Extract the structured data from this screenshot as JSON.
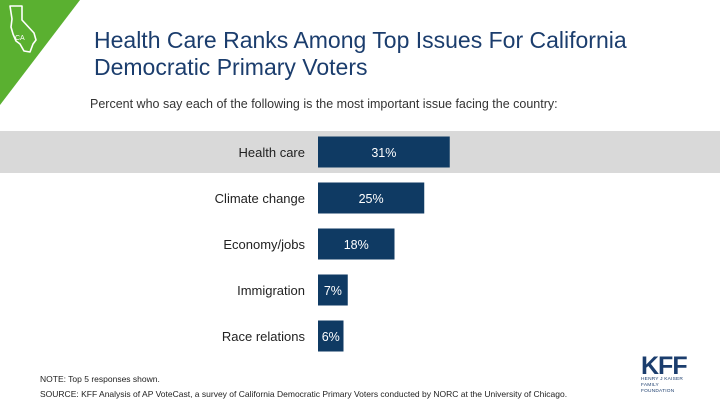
{
  "badge": {
    "label": "CA",
    "color": "#5ab030"
  },
  "header": {
    "title_line1": "Health Care Ranks Among Top Issues For California",
    "title_line2": "Democratic Primary Voters",
    "subtitle": "Percent who say each of the following is the most important issue facing the country:"
  },
  "chart_data": {
    "type": "bar",
    "orientation": "horizontal",
    "title": "Health Care Ranks Among Top Issues For California Democratic Primary Voters",
    "subtitle": "Percent who say each of the following is the most important issue facing the country:",
    "categories": [
      "Health care",
      "Climate change",
      "Economy/jobs",
      "Immigration",
      "Race relations"
    ],
    "values": [
      31,
      25,
      18,
      7,
      6
    ],
    "labels": [
      "31%",
      "25%",
      "18%",
      "7%",
      "6%"
    ],
    "unit": "%",
    "highlight_category": "Health care",
    "bar_color": "#0f3a63",
    "highlight_band_color": "#d9d9d9",
    "xlim": [
      0,
      100
    ],
    "grid": false,
    "legend": "none"
  },
  "footer": {
    "note": "NOTE: Top 5 responses shown.",
    "source": "SOURCE: KFF Analysis of AP VoteCast, a survey of California Democratic Primary Voters conducted by NORC at the University of Chicago."
  },
  "logo": {
    "mark": "KFF",
    "line1": "HENRY J KAISER",
    "line2": "FAMILY FOUNDATION"
  }
}
